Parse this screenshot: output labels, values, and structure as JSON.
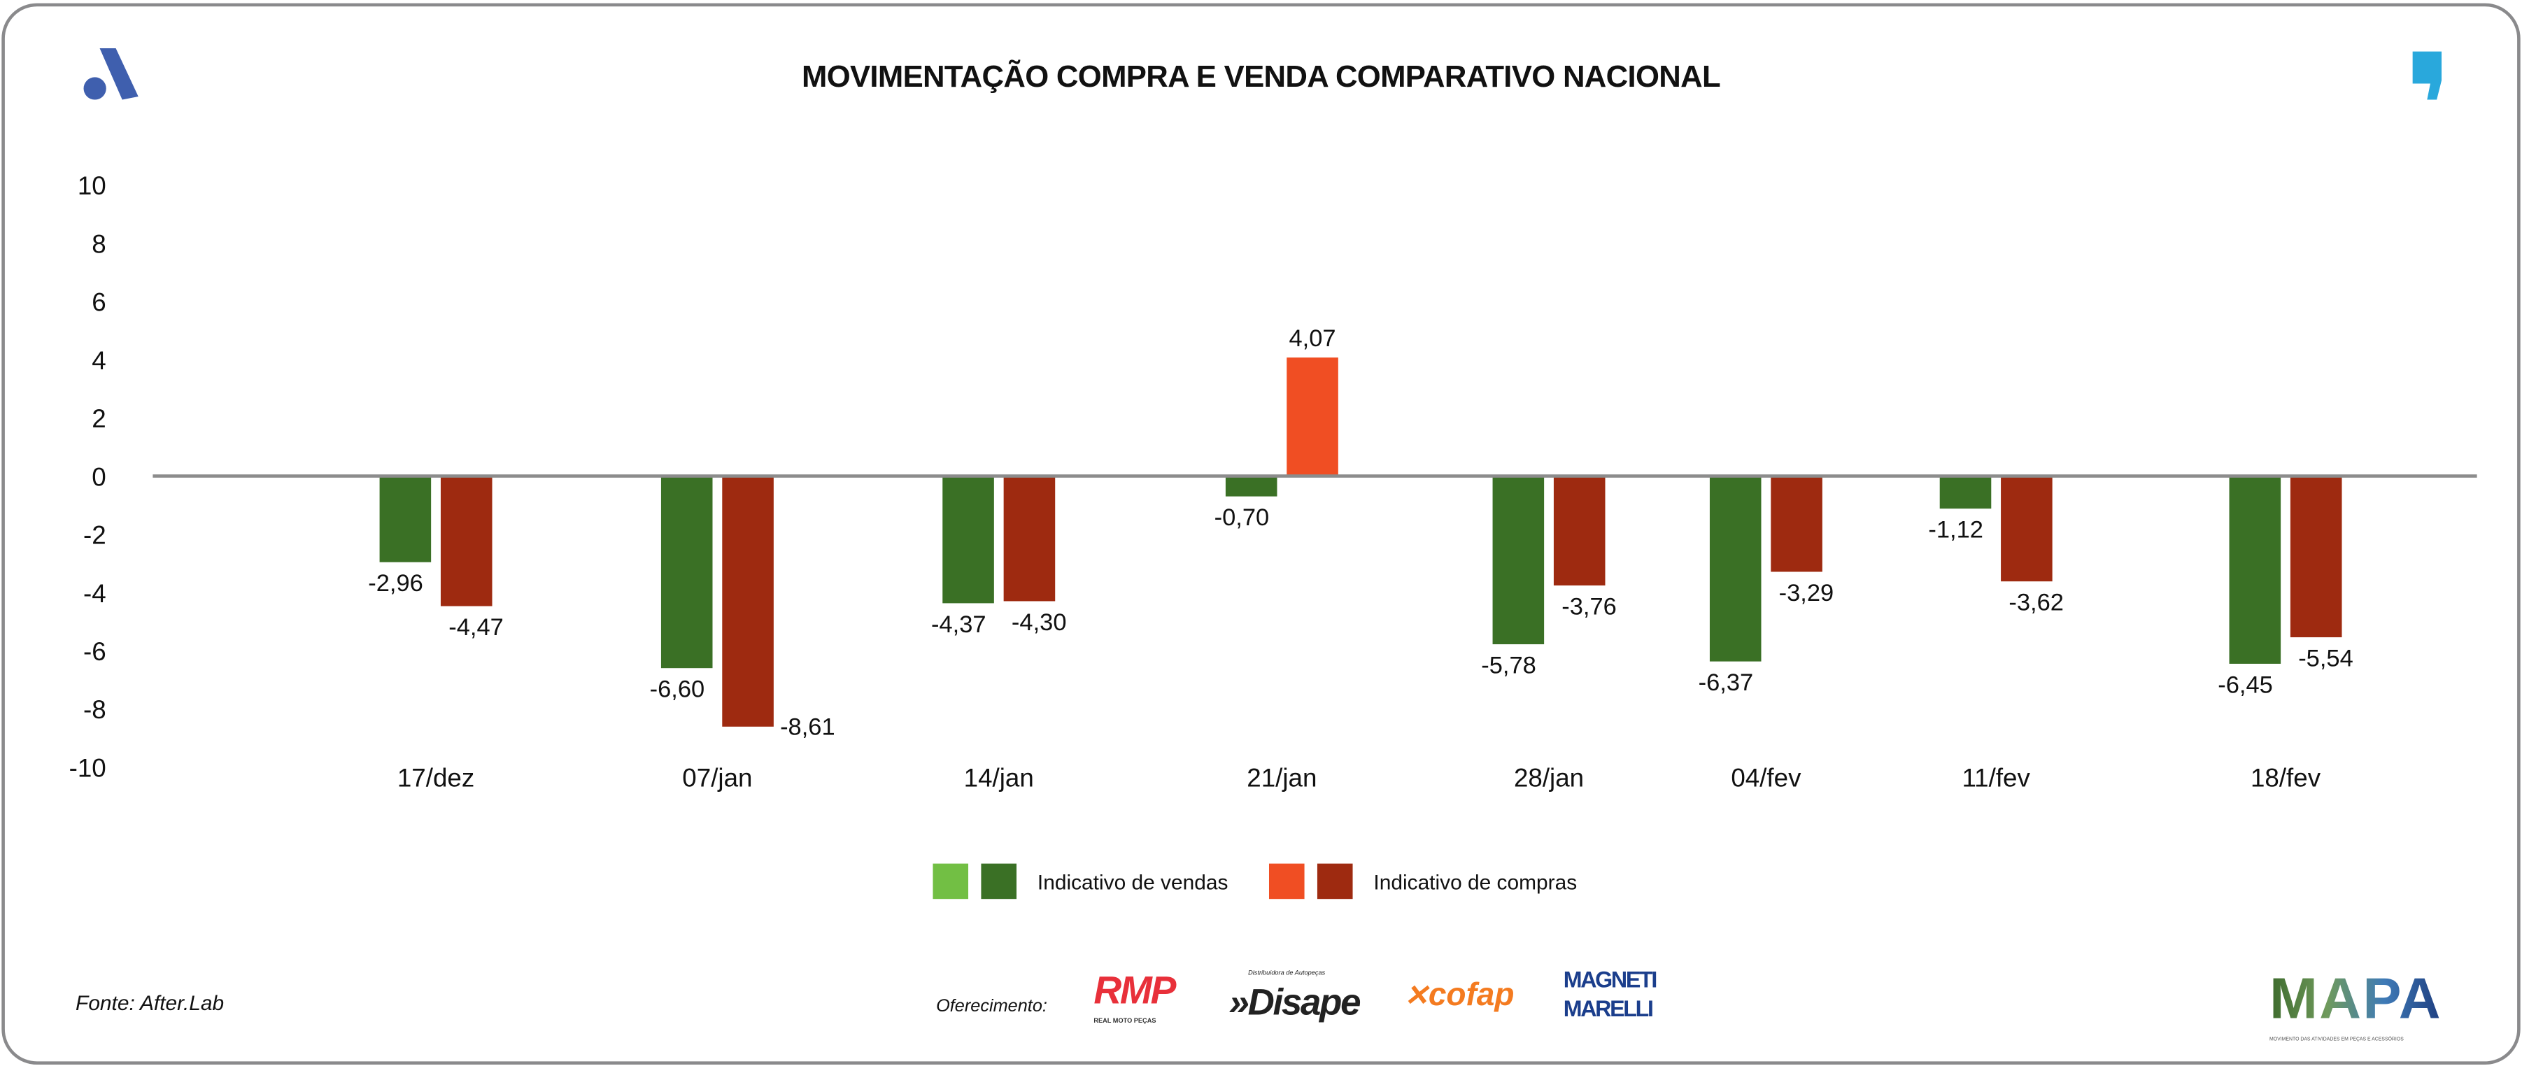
{
  "title": "MOVIMENTAÇÃO COMPRA E VENDA COMPARATIVO NACIONAL",
  "colors": {
    "vendas_light": "#72BF44",
    "vendas_dark": "#3A7025",
    "compras_light": "#F04E23",
    "compras_dark": "#9E2A10",
    "logo_a": "#3F5FAE",
    "logo_comma": "#29A8DC"
  },
  "chart_data": {
    "type": "bar",
    "title": "MOVIMENTAÇÃO COMPRA E VENDA COMPARATIVO NACIONAL",
    "categories": [
      "17/dez",
      "07/jan",
      "14/jan",
      "21/jan",
      "28/jan",
      "04/fev",
      "11/fev",
      "18/fev"
    ],
    "series": [
      {
        "name": "Indicativo de vendas",
        "values": [
          -2.96,
          -6.6,
          -4.37,
          -0.7,
          -5.78,
          -6.37,
          -1.12,
          -6.45
        ],
        "labels": [
          "-2,96",
          "-6,60",
          "-4,37",
          "-0,70",
          "-5,78",
          "-6,37",
          "-1,12",
          "-6,45"
        ]
      },
      {
        "name": "Indicativo de compras",
        "values": [
          -4.47,
          -8.61,
          -4.3,
          4.07,
          -3.76,
          -3.29,
          -3.62,
          -5.54
        ],
        "labels": [
          "-4,47",
          "-8,61",
          "-4,30",
          "4,07",
          "-3,76",
          "-3,29",
          "-3,62",
          "-5,54"
        ]
      }
    ],
    "yticks": [
      "10",
      "8",
      "6",
      "4",
      "2",
      "0",
      "-2",
      "-4",
      "-6",
      "-8",
      "-10"
    ],
    "ylim": [
      -10,
      10
    ],
    "grid": false,
    "legend": "bottom"
  },
  "legend": {
    "vendas": "Indicativo de vendas",
    "compras": "Indicativo de compras"
  },
  "footer": {
    "fonte": "Fonte: After.Lab",
    "oferecimento": "Oferecimento:"
  },
  "logos": {
    "rmp": "RMP",
    "rmp_sub": "REAL MOTO PEÇAS",
    "disape": "»Disape",
    "disape_sub": "Distribuidora de Autopeças",
    "cofap": "cofap",
    "magneti": "MAGNETI MARELLI",
    "mapa": "MAPA",
    "mapa_sub": "MOVIMENTO DAS ATIVIDADES EM PEÇAS E ACESSÓRIOS"
  }
}
